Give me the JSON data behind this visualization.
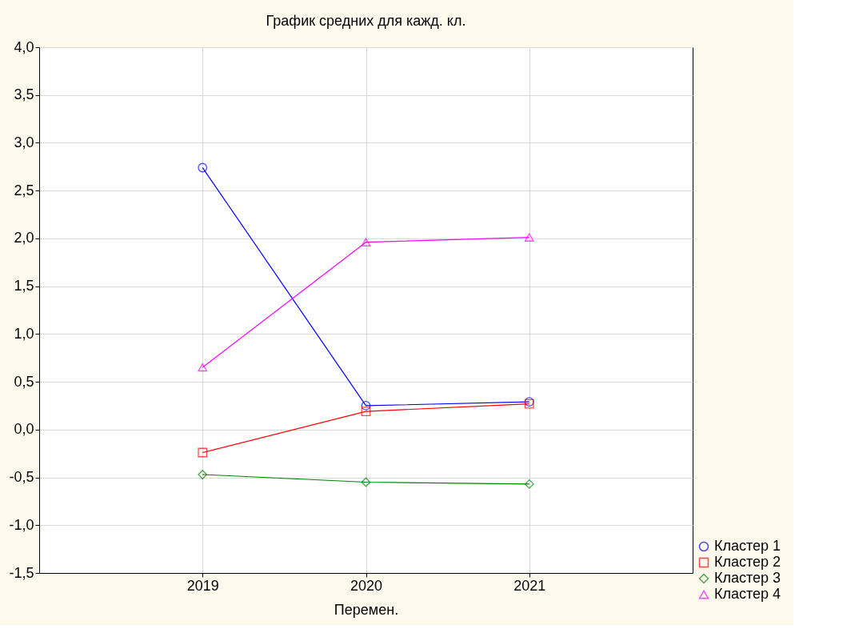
{
  "chart_data": {
    "type": "line",
    "title": "График средних для кажд. кл.",
    "xlabel": "Перемен.",
    "categories": [
      "2019",
      "2020",
      "2021"
    ],
    "series": [
      {
        "name": "Кластер  1",
        "color": "#0000ff",
        "marker": "circle",
        "values": [
          2.74,
          0.25,
          0.29
        ]
      },
      {
        "name": "Кластер  2",
        "color": "#ff0000",
        "marker": "square",
        "values": [
          -0.24,
          0.19,
          0.27
        ]
      },
      {
        "name": "Кластер  3",
        "color": "#008000",
        "marker": "diamond",
        "values": [
          -0.47,
          -0.55,
          -0.57
        ]
      },
      {
        "name": "Кластер  4",
        "color": "#ff00ff",
        "marker": "triangle",
        "values": [
          0.65,
          1.96,
          2.01
        ]
      }
    ],
    "ylim": [
      -1.5,
      4.0
    ],
    "yticks": [
      {
        "value": -1.5,
        "label": "-1,5"
      },
      {
        "value": -1.0,
        "label": "-1,0"
      },
      {
        "value": -0.5,
        "label": "-0,5"
      },
      {
        "value": 0,
        "label": "0,0"
      },
      {
        "value": 0.5,
        "label": "0,5"
      },
      {
        "value": 1.0,
        "label": "1,0"
      },
      {
        "value": 1.5,
        "label": "1,5"
      },
      {
        "value": 2.0,
        "label": "2,0"
      },
      {
        "value": 2.5,
        "label": "2,5"
      },
      {
        "value": 3.0,
        "label": "3,0"
      },
      {
        "value": 3.5,
        "label": "3,5"
      },
      {
        "value": 4.0,
        "label": "4,0"
      }
    ],
    "grid": true,
    "legend": "bottom right",
    "line_style": "solid"
  }
}
